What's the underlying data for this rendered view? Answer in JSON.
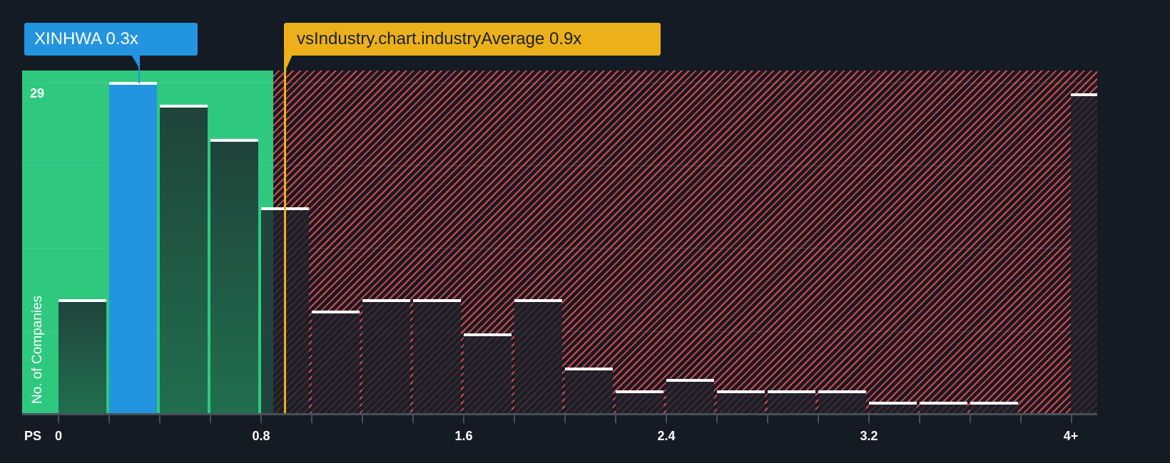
{
  "colors": {
    "background": "#151b24",
    "good_zone": "#2ec97e",
    "bad_zone_hatch": "#e04848",
    "subject": "#2394e0",
    "industry": "#ecb11a",
    "bar_cap": "#ffffff"
  },
  "callouts": {
    "subject": {
      "label": "XINHWA 0.3x",
      "ticker": "XINHWA",
      "value": "0.3x"
    },
    "industry": {
      "label": "vsIndustry.chart.industryAverage 0.9x",
      "value": "0.9x"
    }
  },
  "axes": {
    "x_prefix": "PS",
    "x_ticks": [
      "0",
      "0.8",
      "1.6",
      "2.4",
      "3.2",
      "4+"
    ],
    "y_title": "No. of Companies",
    "y_max_label": "29"
  },
  "chart_data": {
    "type": "bar",
    "title": "",
    "xlabel": "PS",
    "ylabel": "No. of Companies",
    "bin_width": 0.2,
    "categories": [
      "0-0.2",
      "0.2-0.4",
      "0.4-0.6",
      "0.6-0.8",
      "0.8-1.0",
      "1.0-1.2",
      "1.2-1.4",
      "1.4-1.6",
      "1.6-1.8",
      "1.8-2.0",
      "2.0-2.2",
      "2.2-2.4",
      "2.4-2.6",
      "2.6-2.8",
      "2.8-3.0",
      "3.0-3.2",
      "3.2-3.4",
      "3.4-3.6",
      "3.6-3.8",
      "4+"
    ],
    "values": [
      10,
      29,
      27,
      24,
      18,
      9,
      10,
      10,
      7,
      10,
      4,
      2,
      3,
      2,
      2,
      2,
      1,
      1,
      1,
      28
    ],
    "highlighted_category": "0.2-0.4",
    "subject": {
      "name": "XINHWA",
      "value": 0.3
    },
    "industry_average": 0.9,
    "x_tick_labels": [
      "0",
      "0.8",
      "1.6",
      "2.4",
      "3.2",
      "4+"
    ],
    "ylim": [
      0,
      29
    ],
    "grid": true,
    "shaded_regions": [
      {
        "from": 0,
        "to": 0.85,
        "style": "green-solid",
        "meaning": "below industry average"
      },
      {
        "from": 0.85,
        "to": "4+",
        "style": "red-hatched",
        "meaning": "above industry average"
      }
    ]
  }
}
